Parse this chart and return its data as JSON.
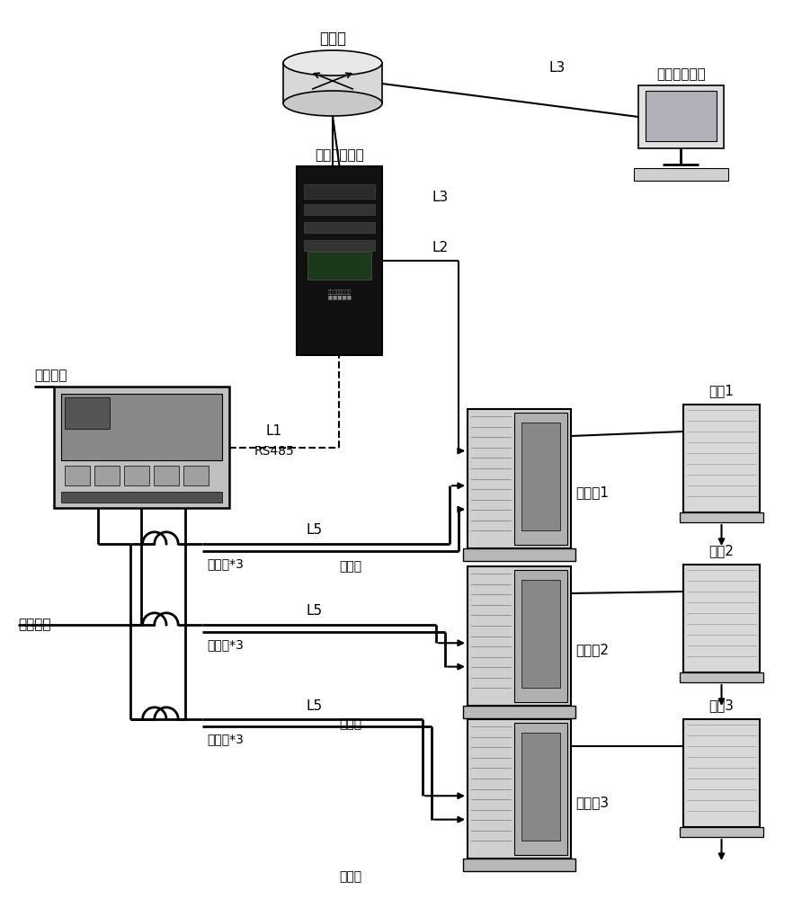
{
  "bg_color": "#ffffff",
  "text_color": "#000000",
  "labels": {
    "router": "路由器",
    "gateway": "智能计费网关",
    "software": "分户计费软件",
    "three_phase1": "三相电源",
    "three_phase2": "三相电源",
    "transformer1": "互感器*3",
    "transformer2": "互感器*3",
    "transformer3": "互感器*3",
    "master1": "主控机1",
    "master2": "主控机2",
    "master3": "主控机3",
    "slave1": "从机1",
    "slave2": "从机2",
    "slave3": "从机3",
    "L1": "L1",
    "RS485": "RS485",
    "L2": "L2",
    "L3a": "L3",
    "L3b": "L3",
    "L5a": "L5",
    "L5b": "L5",
    "L5c": "L5",
    "power_line1": "电源线",
    "power_line2": "电源线",
    "power_line3": "电源线"
  }
}
